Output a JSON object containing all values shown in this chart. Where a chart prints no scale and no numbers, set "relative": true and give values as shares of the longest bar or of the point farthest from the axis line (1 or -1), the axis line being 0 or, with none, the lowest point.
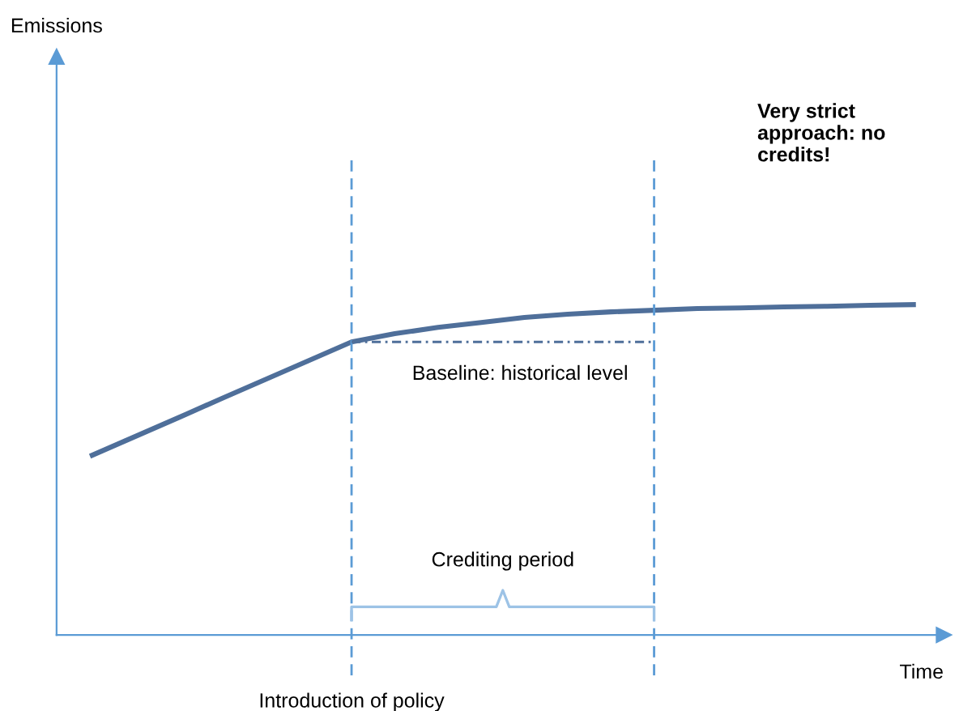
{
  "chart_data": {
    "type": "line",
    "relative": true,
    "xlabel": "Time",
    "categories": [
      null,
      null,
      null,
      null,
      null,
      null,
      null,
      null,
      null,
      null,
      null,
      null,
      null,
      null,
      null,
      null,
      null,
      null,
      null,
      null
    ],
    "series": [
      {
        "color": "#4f6f9a",
        "values": [
          0.544,
          0.601,
          0.658,
          0.716,
          0.773,
          0.83,
          0.887,
          0.912,
          0.931,
          0.946,
          0.961,
          0.971,
          0.978,
          0.983,
          0.988,
          0.99,
          0.993,
          0.995,
          0.998,
          1.0
        ]
      }
    ],
    "ref_lines": [
      {
        "axis": "y",
        "value": 0.887,
        "label": "Baseline: historical level",
        "color": "#4f6f9a",
        "line_style": "dotted"
      }
    ],
    "annotations": [
      "Very strict approach: no credits!",
      "Emissions",
      "Crediting period",
      "Introduction of policy"
    ],
    "marker": "none",
    "line_style": "solid"
  }
}
